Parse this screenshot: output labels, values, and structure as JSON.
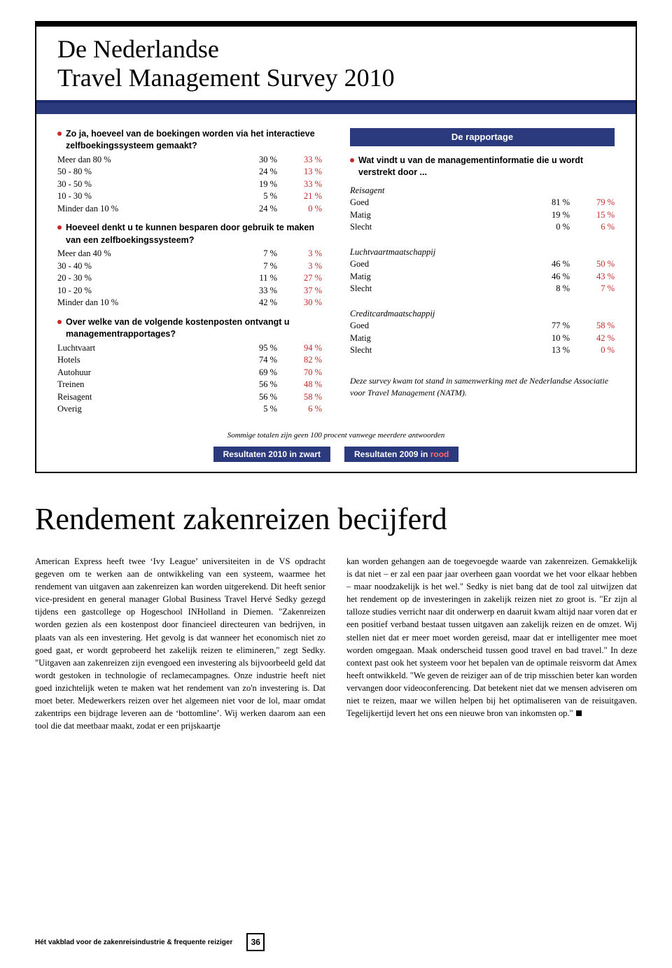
{
  "survey_title_line1": "De Nederlandse",
  "survey_title_line2": "Travel Management Survey 2010",
  "left": {
    "q1": "Zo ja, hoeveel van de boekingen worden via het interactieve zelfboekingssysteem gemaakt?",
    "q1_rows": [
      {
        "label": "Meer dan 80 %",
        "v1": "30 %",
        "v2": "33 %"
      },
      {
        "label": "50 - 80 %",
        "v1": "24 %",
        "v2": "13 %"
      },
      {
        "label": "30 - 50 %",
        "v1": "19 %",
        "v2": "33 %"
      },
      {
        "label": "10 - 30 %",
        "v1": "5 %",
        "v2": "21 %"
      },
      {
        "label": "Minder dan 10 %",
        "v1": "24 %",
        "v2": "0 %"
      }
    ],
    "q2": "Hoeveel denkt u te kunnen besparen door gebruik te maken van een zelfboekingssysteem?",
    "q2_rows": [
      {
        "label": "Meer dan 40 %",
        "v1": "7 %",
        "v2": "3 %"
      },
      {
        "label": "30 - 40 %",
        "v1": "7 %",
        "v2": "3 %"
      },
      {
        "label": "20 - 30 %",
        "v1": "11 %",
        "v2": "27 %"
      },
      {
        "label": "10 - 20 %",
        "v1": "33 %",
        "v2": "37 %"
      },
      {
        "label": "Minder dan 10 %",
        "v1": "42 %",
        "v2": "30 %"
      }
    ],
    "q3": "Over welke van de volgende kostenposten ontvangt u managementrapportages?",
    "q3_rows": [
      {
        "label": "Luchtvaart",
        "v1": "95 %",
        "v2": "94 %"
      },
      {
        "label": "Hotels",
        "v1": "74 %",
        "v2": "82 %"
      },
      {
        "label": "Autohuur",
        "v1": "69 %",
        "v2": "70 %"
      },
      {
        "label": "Treinen",
        "v1": "56 %",
        "v2": "48 %"
      },
      {
        "label": "Reisagent",
        "v1": "56 %",
        "v2": "58 %"
      },
      {
        "label": "Overig",
        "v1": "5 %",
        "v2": "6 %"
      }
    ]
  },
  "right": {
    "header": "De rapportage",
    "q1": "Wat vindt u van de managementinformatie die u wordt verstrekt door ...",
    "groups": [
      {
        "title": "Reisagent",
        "rows": [
          {
            "label": "Goed",
            "v1": "81 %",
            "v2": "79 %"
          },
          {
            "label": "Matig",
            "v1": "19 %",
            "v2": "15 %"
          },
          {
            "label": "Slecht",
            "v1": "0 %",
            "v2": "6 %"
          }
        ]
      },
      {
        "title": "Luchtvaartmaatschappij",
        "rows": [
          {
            "label": "Goed",
            "v1": "46 %",
            "v2": "50 %"
          },
          {
            "label": "Matig",
            "v1": "46 %",
            "v2": "43 %"
          },
          {
            "label": "Slecht",
            "v1": "8 %",
            "v2": "7 %"
          }
        ]
      },
      {
        "title": "Creditcardmaatschappij",
        "rows": [
          {
            "label": "Goed",
            "v1": "77 %",
            "v2": "58 %"
          },
          {
            "label": "Matig",
            "v1": "10 %",
            "v2": "42 %"
          },
          {
            "label": "Slecht",
            "v1": "13 %",
            "v2": "0 %"
          }
        ]
      }
    ],
    "credit": "Deze survey kwam tot stand in samenwerking met de Nederlandse Associatie voor Travel Management (NATM)."
  },
  "footnote": "Sommige totalen zijn geen 100 procent vanwege meerdere antwoorden",
  "legend_black_pre": "Resultaten 2010 in zwart",
  "legend_red_pre": "Resultaten 2009 in ",
  "legend_red_word": "rood",
  "article": {
    "title": "Rendement zakenreizen becijferd",
    "col1": "American Express heeft twee ‘Ivy League’ universiteiten in de VS opdracht gegeven om te werken aan de ontwikkeling van een systeem, waarmee het rendement van uitgaven aan zakenreizen kan worden uitgerekend. Dit heeft senior vice-president en general manager Global Business Travel Hervé Sedky gezegd tijdens een gastcollege op Hogeschool INHolland in Diemen. \"Zakenreizen worden gezien als een kostenpost door financieel directeuren van bedrijven, in plaats van als een investering. Het gevolg is dat wanneer het economisch niet zo goed gaat, er wordt geprobeerd het zakelijk reizen te elimineren,\" zegt Sedky. \"Uitgaven aan zakenreizen zijn evengoed een investering als bijvoorbeeld geld dat wordt gestoken in technologie of reclamecampagnes. Onze industrie heeft niet goed inzichtelijk weten te maken wat het rendement van zo'n investering is. Dat moet beter. Medewerkers reizen over het algemeen niet voor de lol, maar omdat zakentrips een bijdrage leveren aan de ‘bottomline’. Wij werken daarom aan een tool die dat meetbaar maakt, zodat er een prijskaartje",
    "col2": "kan worden gehangen aan de toegevoegde waarde van zakenreizen. Gemakkelijk is dat niet – er zal een paar jaar overheen gaan voordat we het voor elkaar hebben – maar noodzakelijk is het wel.\" Sedky is niet bang dat de tool zal uitwijzen dat het rendement op de investeringen in zakelijk reizen niet zo groot is. \"Er zijn al talloze studies verricht naar dit onderwerp en daaruit kwam altijd naar voren dat er een positief verband bestaat tussen uitgaven aan zakelijk reizen en de omzet. Wij stellen niet dat er meer moet worden gereisd, maar dat er intelligenter mee moet worden omgegaan. Maak onderscheid tussen good travel en bad travel.\" In deze context past ook het systeem voor het bepalen van de optimale reisvorm dat Amex heeft ontwikkeld. \"We geven de reiziger aan of de trip misschien beter kan worden vervangen door videoconferencing. Dat betekent niet dat we mensen adviseren om niet te reizen, maar we willen helpen bij het optimaliseren van de reisuitgaven. Tegelijkertijd levert het ons een nieuwe bron van inkomsten op.\""
  },
  "footer_text": "Hét vakblad voor de zakenreisindustrie & frequente reiziger",
  "page_number": "36",
  "colors": {
    "navy": "#2a3a7c",
    "red": "#c62828"
  }
}
